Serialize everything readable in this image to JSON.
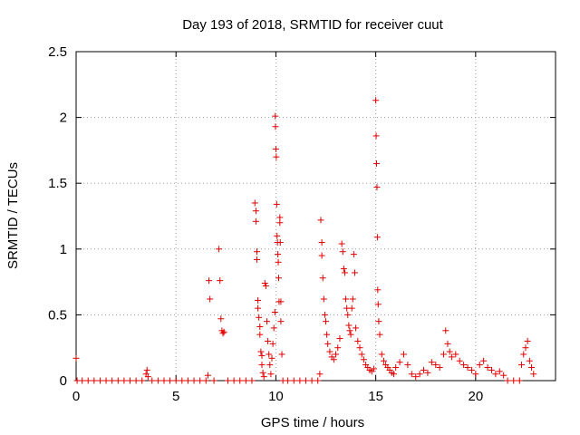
{
  "chart_data": {
    "type": "scatter",
    "title": "Day 193 of 2018, SRMTID for receiver cuut",
    "xlabel": "GPS time / hours",
    "ylabel": "SRMTID / TECUs",
    "xlim": [
      0,
      24
    ],
    "ylim": [
      0,
      2.5
    ],
    "xticks": [
      0,
      5,
      10,
      15,
      20
    ],
    "yticks": [
      0,
      0.5,
      1,
      1.5,
      2,
      2.5
    ],
    "xtick_labels": [
      "0",
      "5",
      "10",
      "15",
      "20"
    ],
    "ytick_labels": [
      "0",
      "0.5",
      "1",
      "1.5",
      "2",
      "2.5"
    ],
    "grid": true,
    "marker": "+",
    "series": [
      {
        "name": "SRMTID",
        "color": "#e00000",
        "points": [
          [
            0.0,
            0.17
          ],
          [
            0.05,
            0
          ],
          [
            0.3,
            0
          ],
          [
            0.6,
            0
          ],
          [
            0.9,
            0
          ],
          [
            1.2,
            0
          ],
          [
            1.5,
            0
          ],
          [
            1.8,
            0
          ],
          [
            2.1,
            0
          ],
          [
            2.4,
            0
          ],
          [
            2.7,
            0
          ],
          [
            3.0,
            0
          ],
          [
            3.3,
            0
          ],
          [
            3.5,
            0.05
          ],
          [
            3.55,
            0.08
          ],
          [
            3.6,
            0.03
          ],
          [
            3.8,
            0
          ],
          [
            4.1,
            0
          ],
          [
            4.4,
            0
          ],
          [
            4.7,
            0
          ],
          [
            5.0,
            0
          ],
          [
            5.3,
            0
          ],
          [
            5.6,
            0
          ],
          [
            5.9,
            0
          ],
          [
            6.2,
            0
          ],
          [
            6.5,
            0
          ],
          [
            6.6,
            0.04
          ],
          [
            6.65,
            0.76
          ],
          [
            6.7,
            0.62
          ],
          [
            6.9,
            0
          ],
          [
            7.15,
            1.0
          ],
          [
            7.2,
            0.76
          ],
          [
            7.25,
            0.47
          ],
          [
            7.3,
            0.38
          ],
          [
            7.35,
            0.36
          ],
          [
            7.4,
            0.37
          ],
          [
            7.6,
            0
          ],
          [
            7.9,
            0
          ],
          [
            8.2,
            0
          ],
          [
            8.5,
            0
          ],
          [
            8.8,
            0
          ],
          [
            8.95,
            1.35
          ],
          [
            9.0,
            1.29
          ],
          [
            9.0,
            1.21
          ],
          [
            9.05,
            0.98
          ],
          [
            9.05,
            0.92
          ],
          [
            9.1,
            0.61
          ],
          [
            9.1,
            0.55
          ],
          [
            9.15,
            0.48
          ],
          [
            9.2,
            0.41
          ],
          [
            9.2,
            0.35
          ],
          [
            9.25,
            0.22
          ],
          [
            9.3,
            0.19
          ],
          [
            9.3,
            0.12
          ],
          [
            9.35,
            0.06
          ],
          [
            9.4,
            0.03
          ],
          [
            9.45,
            0.74
          ],
          [
            9.5,
            0.72
          ],
          [
            9.55,
            0.45
          ],
          [
            9.6,
            0.3
          ],
          [
            9.65,
            0.2
          ],
          [
            9.7,
            0.12
          ],
          [
            9.75,
            0.05
          ],
          [
            9.8,
            0.17
          ],
          [
            9.85,
            0.28
          ],
          [
            9.9,
            0.4
          ],
          [
            9.95,
            0.52
          ],
          [
            9.97,
            2.01
          ],
          [
            9.98,
            1.93
          ],
          [
            10.0,
            1.76
          ],
          [
            10.02,
            1.7
          ],
          [
            10.04,
            1.34
          ],
          [
            10.06,
            1.1
          ],
          [
            10.08,
            1.05
          ],
          [
            10.1,
            0.96
          ],
          [
            10.12,
            0.9
          ],
          [
            10.14,
            0.78
          ],
          [
            10.16,
            0.6
          ],
          [
            10.2,
            1.24
          ],
          [
            10.2,
            1.2
          ],
          [
            10.22,
            1.05
          ],
          [
            10.25,
            0.6
          ],
          [
            10.25,
            0.45
          ],
          [
            10.3,
            0.2
          ],
          [
            10.35,
            0
          ],
          [
            10.6,
            0
          ],
          [
            10.9,
            0
          ],
          [
            11.2,
            0
          ],
          [
            11.5,
            0
          ],
          [
            11.8,
            0
          ],
          [
            12.1,
            0
          ],
          [
            12.2,
            0.05
          ],
          [
            12.25,
            1.22
          ],
          [
            12.3,
            1.05
          ],
          [
            12.3,
            0.95
          ],
          [
            12.35,
            0.78
          ],
          [
            12.4,
            0.62
          ],
          [
            12.45,
            0.5
          ],
          [
            12.5,
            0.45
          ],
          [
            12.55,
            0.35
          ],
          [
            12.6,
            0.28
          ],
          [
            12.7,
            0.22
          ],
          [
            12.8,
            0.18
          ],
          [
            12.9,
            0.16
          ],
          [
            13.0,
            0.2
          ],
          [
            13.1,
            0.25
          ],
          [
            13.2,
            0.32
          ],
          [
            13.3,
            1.04
          ],
          [
            13.35,
            0.98
          ],
          [
            13.4,
            0.85
          ],
          [
            13.45,
            0.82
          ],
          [
            13.5,
            0.62
          ],
          [
            13.55,
            0.55
          ],
          [
            13.6,
            0.5
          ],
          [
            13.65,
            0.42
          ],
          [
            13.7,
            0.38
          ],
          [
            13.75,
            0.35
          ],
          [
            13.8,
            0.55
          ],
          [
            13.85,
            0.62
          ],
          [
            13.9,
            0.96
          ],
          [
            13.95,
            0.82
          ],
          [
            14.0,
            0.4
          ],
          [
            14.1,
            0.3
          ],
          [
            14.2,
            0.25
          ],
          [
            14.3,
            0.2
          ],
          [
            14.4,
            0.16
          ],
          [
            14.5,
            0.12
          ],
          [
            14.6,
            0.1
          ],
          [
            14.7,
            0.08
          ],
          [
            14.8,
            0.07
          ],
          [
            14.9,
            0.09
          ],
          [
            15.0,
            2.13
          ],
          [
            15.02,
            1.86
          ],
          [
            15.04,
            1.65
          ],
          [
            15.06,
            1.47
          ],
          [
            15.08,
            1.09
          ],
          [
            15.1,
            0.69
          ],
          [
            15.12,
            0.58
          ],
          [
            15.15,
            0.45
          ],
          [
            15.2,
            0.35
          ],
          [
            15.3,
            0.2
          ],
          [
            15.4,
            0.15
          ],
          [
            15.5,
            0.12
          ],
          [
            15.6,
            0.1
          ],
          [
            15.7,
            0.08
          ],
          [
            15.8,
            0.06
          ],
          [
            15.9,
            0.05
          ],
          [
            16.0,
            0.1
          ],
          [
            16.2,
            0.14
          ],
          [
            16.4,
            0.2
          ],
          [
            16.6,
            0.12
          ],
          [
            16.8,
            0.05
          ],
          [
            17.0,
            0.03
          ],
          [
            17.2,
            0.05
          ],
          [
            17.4,
            0.08
          ],
          [
            17.6,
            0.06
          ],
          [
            17.8,
            0.14
          ],
          [
            18.0,
            0.12
          ],
          [
            18.2,
            0.1
          ],
          [
            18.4,
            0.2
          ],
          [
            18.5,
            0.38
          ],
          [
            18.6,
            0.28
          ],
          [
            18.7,
            0.22
          ],
          [
            18.8,
            0.18
          ],
          [
            19.0,
            0.2
          ],
          [
            19.2,
            0.15
          ],
          [
            19.4,
            0.12
          ],
          [
            19.6,
            0.1
          ],
          [
            19.8,
            0.08
          ],
          [
            20.0,
            0.05
          ],
          [
            20.2,
            0.12
          ],
          [
            20.4,
            0.15
          ],
          [
            20.6,
            0.1
          ],
          [
            20.8,
            0.08
          ],
          [
            21.0,
            0.05
          ],
          [
            21.2,
            0.07
          ],
          [
            21.4,
            0.04
          ],
          [
            21.6,
            0
          ],
          [
            21.9,
            0
          ],
          [
            22.2,
            0
          ],
          [
            22.3,
            0.12
          ],
          [
            22.4,
            0.2
          ],
          [
            22.5,
            0.25
          ],
          [
            22.6,
            0.3
          ],
          [
            22.7,
            0.15
          ],
          [
            22.8,
            0.1
          ],
          [
            22.9,
            0.05
          ]
        ]
      }
    ]
  }
}
